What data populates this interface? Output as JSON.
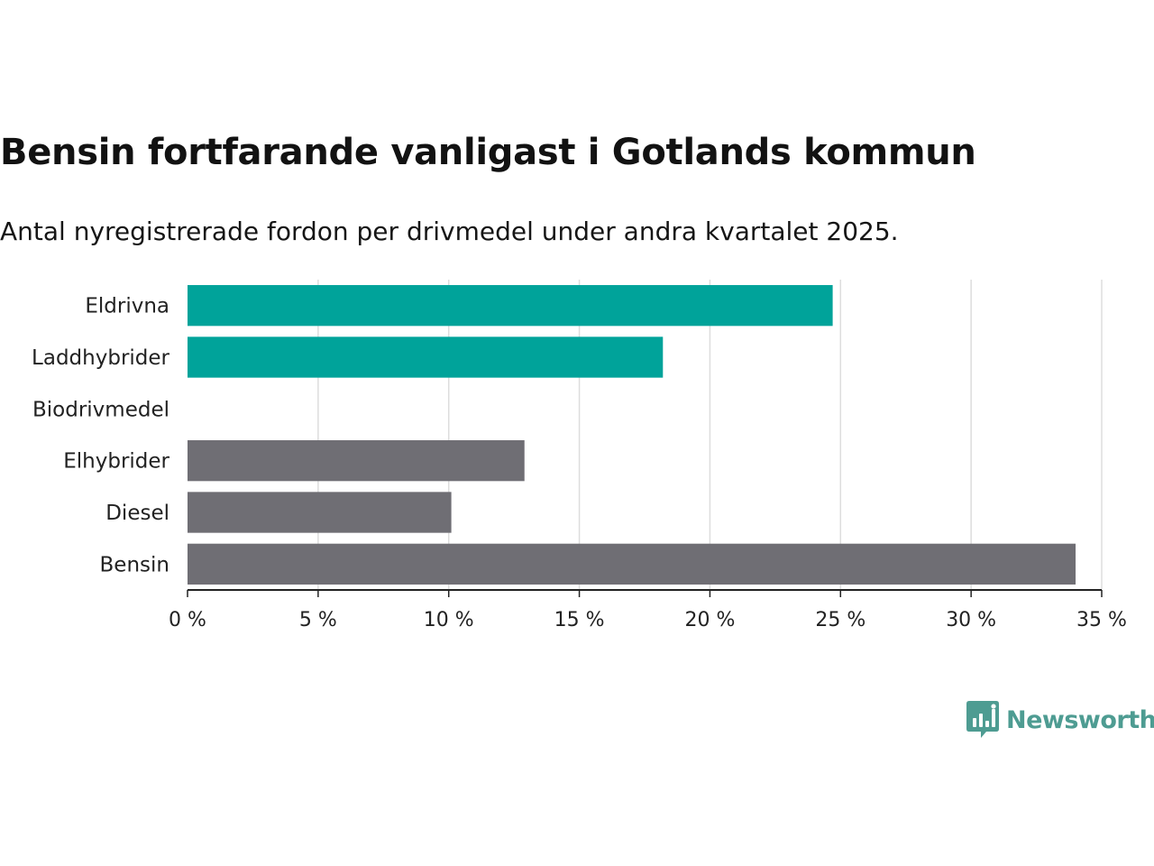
{
  "header": {
    "title": "Bensin fortfarande vanligast i Gotlands kommun",
    "subtitle": "Antal nyregistrerade fordon per drivmedel under andra kvartalet 2025."
  },
  "brand": {
    "name": "Newsworthy",
    "icon": "newsworthy-logo-icon",
    "color": "#4e9c92"
  },
  "colors": {
    "highlight": "#00a39a",
    "default": "#6f6e74",
    "grid": "#dddddd",
    "axis": "#222222"
  },
  "chart_data": {
    "type": "bar",
    "orientation": "horizontal",
    "categories": [
      "Eldrivna",
      "Laddhybrider",
      "Biodrivmedel",
      "Elhybrider",
      "Diesel",
      "Bensin"
    ],
    "values": [
      24.7,
      18.2,
      0,
      12.9,
      10.1,
      34.0
    ],
    "highlighted": [
      true,
      true,
      true,
      false,
      false,
      false
    ],
    "xlim": [
      0,
      35
    ],
    "xticks": [
      0,
      5,
      10,
      15,
      20,
      25,
      30,
      35
    ],
    "tick_suffix": " %",
    "grid": true,
    "legend": "none"
  }
}
